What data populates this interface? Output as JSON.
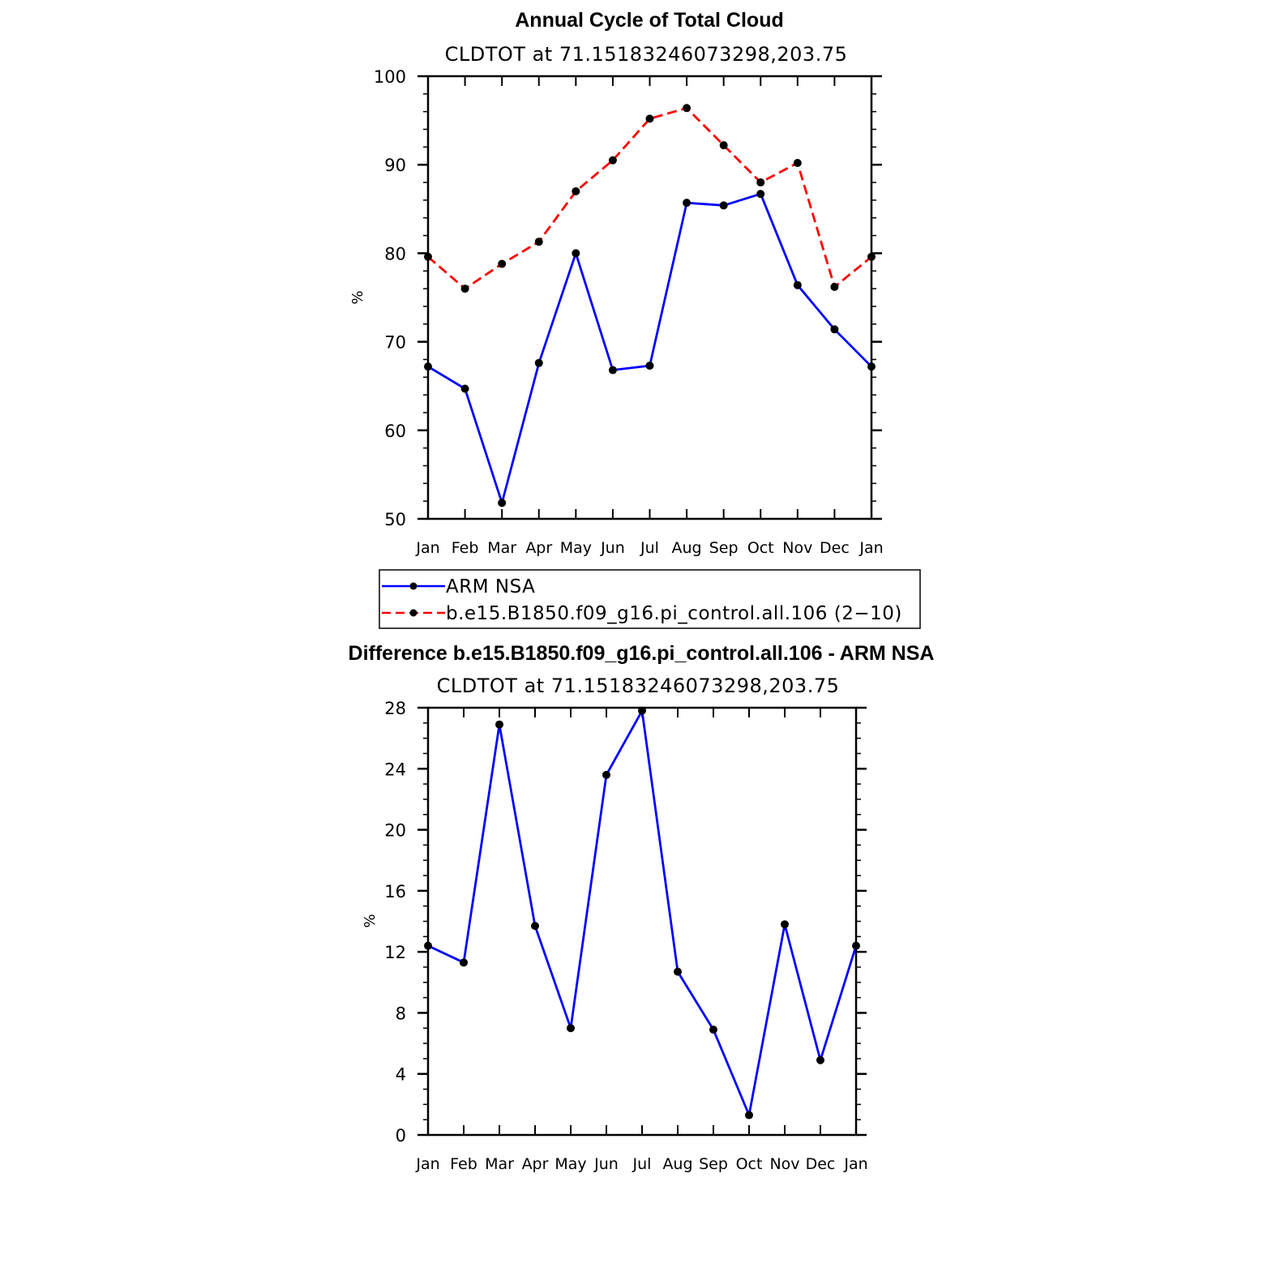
{
  "chart_data": [
    {
      "type": "line",
      "title": "Annual Cycle of Total Cloud",
      "subtitle": "CLDTOT at 71.15183246073298,203.75",
      "ylabel": "%",
      "xlabel": "",
      "categories": [
        "Jan",
        "Feb",
        "Mar",
        "Apr",
        "May",
        "Jun",
        "Jul",
        "Aug",
        "Sep",
        "Oct",
        "Nov",
        "Dec",
        "Jan"
      ],
      "ylim": [
        50,
        100
      ],
      "yticks": [
        50,
        60,
        70,
        80,
        90,
        100
      ],
      "grid": false,
      "legend_position": "below",
      "series": [
        {
          "name": "ARM NSA",
          "color": "#0000ff",
          "dash": "solid",
          "marker": "dot",
          "values": [
            67.2,
            64.7,
            51.8,
            67.6,
            80.0,
            66.8,
            67.3,
            85.7,
            85.4,
            86.7,
            76.4,
            71.4,
            67.2
          ]
        },
        {
          "name": "b.e15.B1850.f09_g16.pi_control.all.106 (2−10)",
          "color": "#ff0000",
          "dash": "dashed",
          "marker": "dot",
          "values": [
            79.6,
            76.0,
            78.8,
            81.3,
            87.0,
            90.5,
            95.2,
            96.4,
            92.2,
            88.0,
            90.2,
            76.2,
            79.6
          ]
        }
      ]
    },
    {
      "type": "line",
      "title": "Difference b.e15.B1850.f09_g16.pi_control.all.106 - ARM NSA",
      "subtitle": "CLDTOT at 71.15183246073298,203.75",
      "ylabel": "%",
      "xlabel": "",
      "categories": [
        "Jan",
        "Feb",
        "Mar",
        "Apr",
        "May",
        "Jun",
        "Jul",
        "Aug",
        "Sep",
        "Oct",
        "Nov",
        "Dec",
        "Jan"
      ],
      "ylim": [
        0,
        28
      ],
      "yticks": [
        0,
        4,
        8,
        12,
        16,
        20,
        24,
        28
      ],
      "grid": false,
      "series": [
        {
          "color": "#0000ff",
          "dash": "solid",
          "marker": "dot",
          "values": [
            12.4,
            11.3,
            26.9,
            13.7,
            7.0,
            23.6,
            27.8,
            10.7,
            6.9,
            1.3,
            13.8,
            4.9,
            12.4
          ]
        }
      ]
    }
  ]
}
